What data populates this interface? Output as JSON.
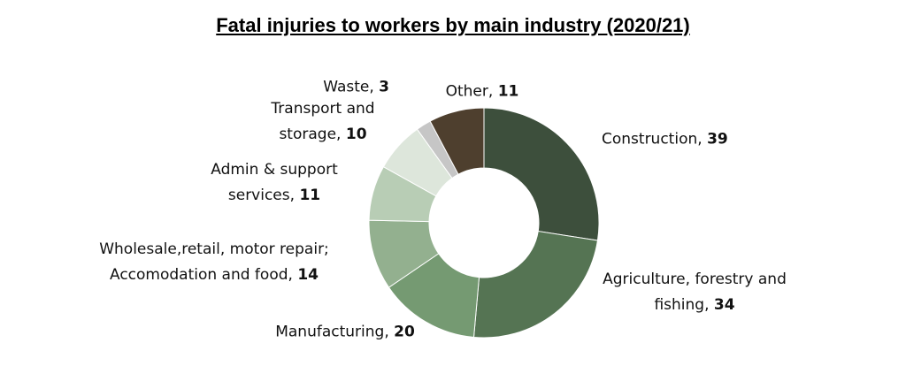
{
  "chart_data": {
    "type": "donut",
    "title": "Fatal injuries to workers by main industry (2020/21)",
    "categories": [
      "Construction",
      "Agriculture, forestry and fishing",
      "Manufacturing",
      "Wholesale,retail, motor repair; Accomodation and food",
      "Admin & support services",
      "Transport and storage",
      "Waste",
      "Other"
    ],
    "values": [
      39,
      34,
      20,
      14,
      11,
      10,
      3,
      11
    ],
    "colors": [
      "#3d4f3c",
      "#557453",
      "#759a72",
      "#93b08f",
      "#b8cdb5",
      "#dde6db",
      "#c6c6c6",
      "#4e3f2e"
    ],
    "label_separator": ", "
  }
}
